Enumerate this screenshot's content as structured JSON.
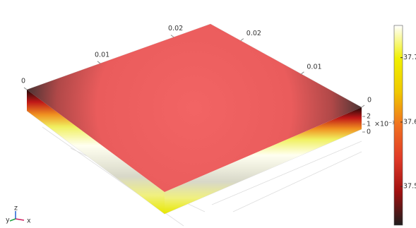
{
  "chart_data": {
    "type": "surface3d",
    "xticks": [
      0,
      0.01,
      0.02
    ],
    "xlim": [
      0,
      0.025
    ],
    "yticks": [
      0.02,
      0.01,
      0
    ],
    "ylim": [
      0,
      0.025
    ],
    "zticks": [
      0,
      1,
      2
    ],
    "zlim": [
      0,
      2
    ],
    "z_exponent_label": "×10⁻³",
    "colorbar": {
      "clim": [
        37.44,
        37.75
      ],
      "ticks": [
        37.5,
        37.6,
        37.7
      ],
      "colormap": [
        "#1e1e1e",
        "#a01010",
        "#e03a28",
        "#f07020",
        "#f0c800",
        "#f0f000",
        "#ffffff"
      ]
    },
    "triad": {
      "x": "x",
      "y": "y",
      "z": "z"
    }
  }
}
